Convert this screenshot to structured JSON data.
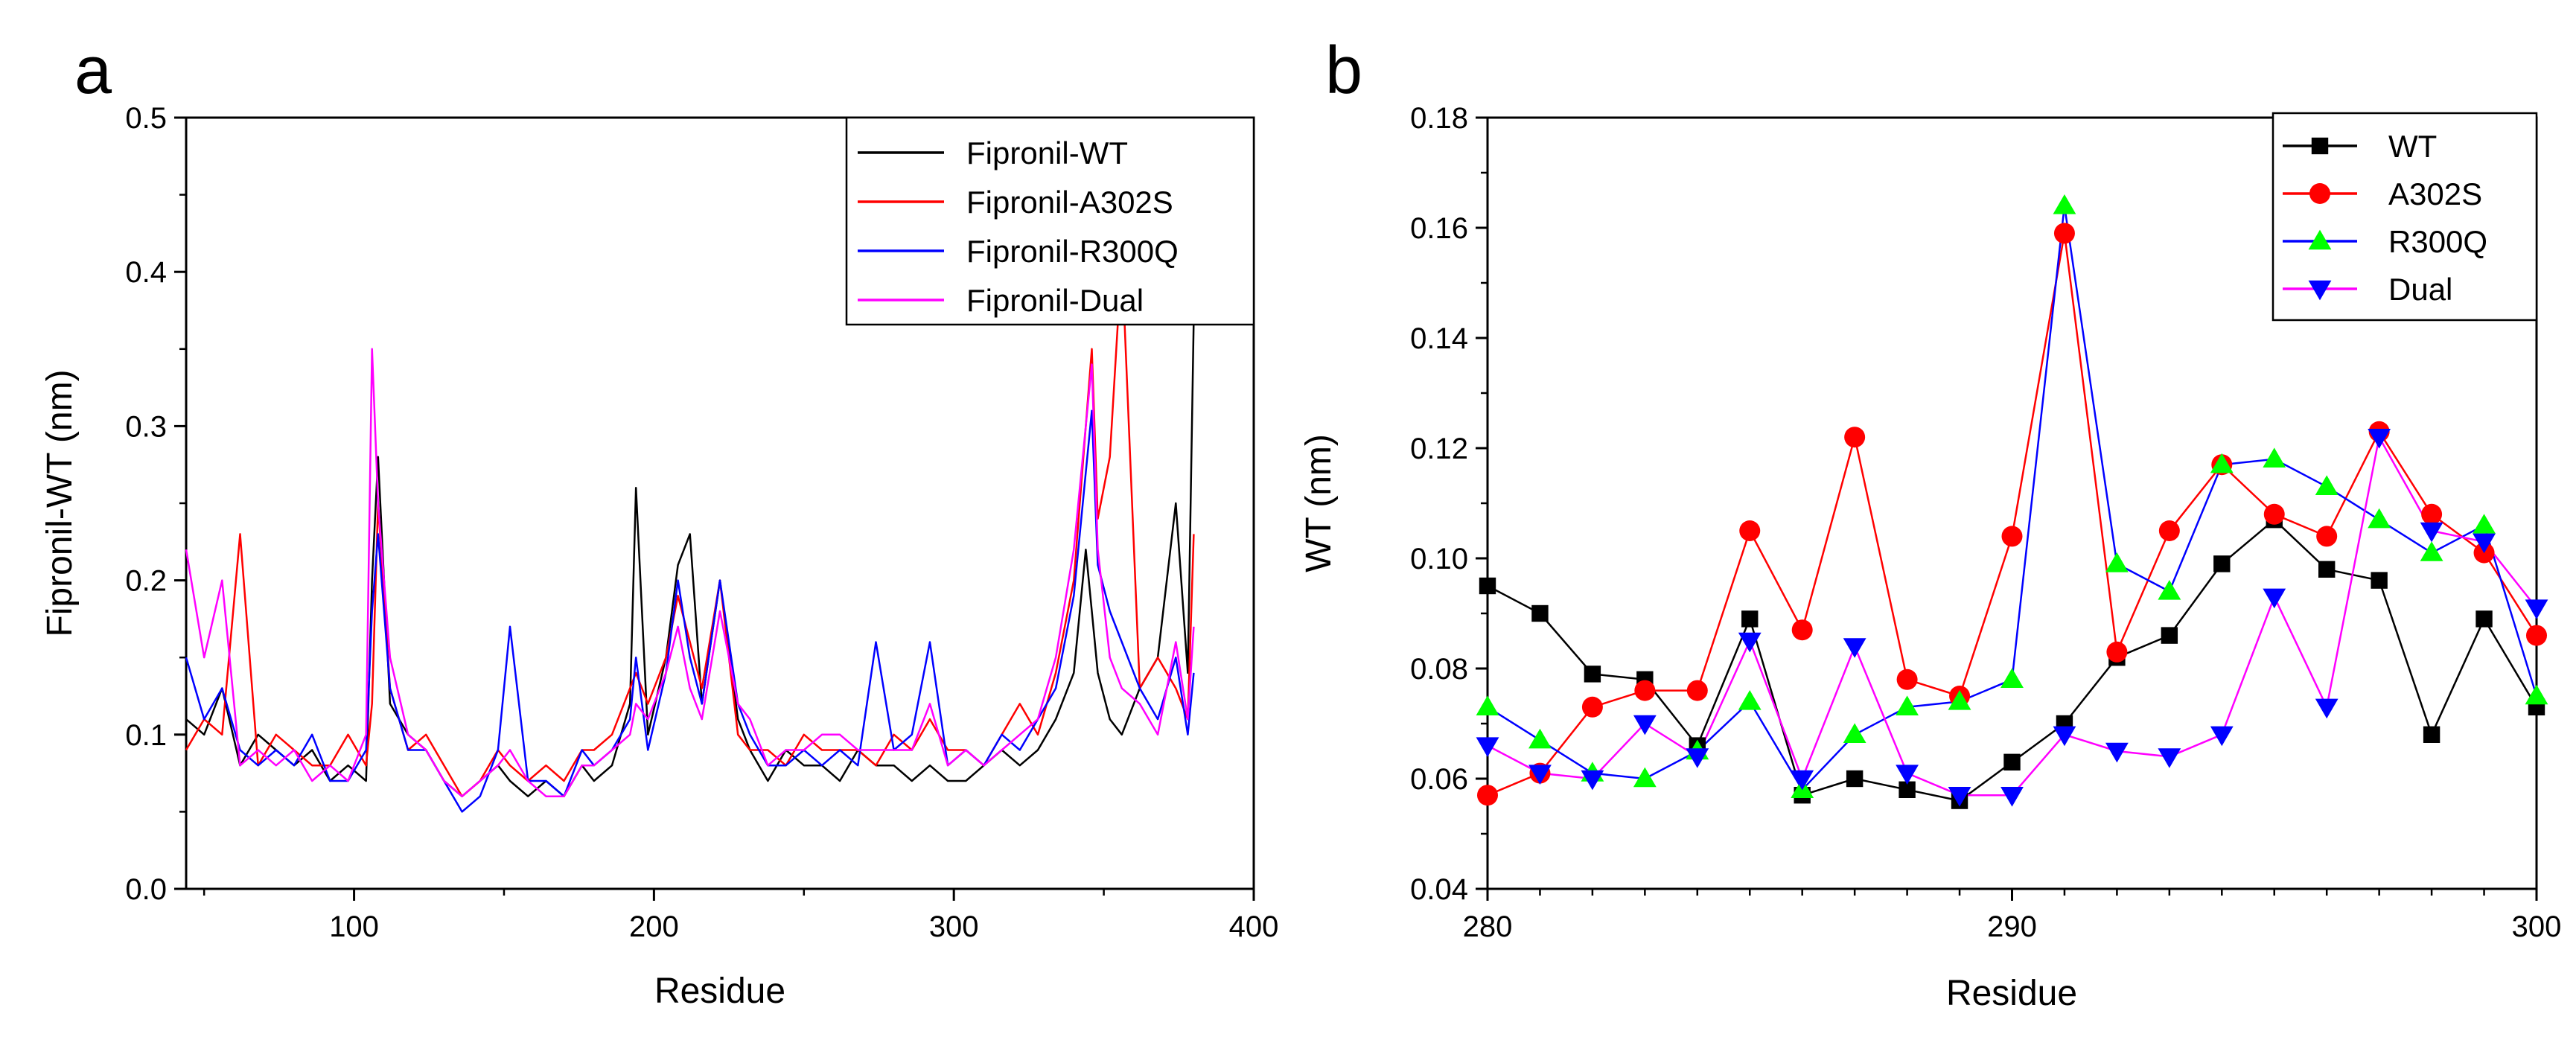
{
  "chart_data": [
    {
      "type": "line",
      "panel_label": "a",
      "title": "",
      "xlabel": "Residue",
      "ylabel": "Fipronil-WT (nm)",
      "xlim": [
        44,
        400
      ],
      "ylim": [
        0.0,
        0.5
      ],
      "xticks": [
        100,
        200,
        300,
        400
      ],
      "xtick_labels": [
        "100",
        "200",
        "300",
        "400"
      ],
      "yticks": [
        0.0,
        0.1,
        0.2,
        0.3,
        0.4,
        0.5
      ],
      "ytick_labels": [
        "0.0",
        "0.1",
        "0.2",
        "0.3",
        "0.4",
        "0.5"
      ],
      "legend_position": "top-right",
      "x": [
        44,
        50,
        56,
        62,
        68,
        74,
        80,
        86,
        92,
        98,
        104,
        106,
        108,
        112,
        118,
        124,
        130,
        136,
        142,
        148,
        152,
        158,
        164,
        170,
        176,
        180,
        186,
        192,
        194,
        198,
        204,
        208,
        212,
        216,
        222,
        228,
        232,
        238,
        244,
        250,
        256,
        262,
        268,
        274,
        280,
        286,
        292,
        298,
        304,
        310,
        316,
        322,
        328,
        334,
        340,
        344,
        346,
        348,
        352,
        356,
        362,
        368,
        374,
        378,
        380
      ],
      "series": [
        {
          "name": "Fipronil-WT",
          "color": "#000000",
          "values": [
            0.11,
            0.1,
            0.13,
            0.08,
            0.1,
            0.09,
            0.08,
            0.09,
            0.07,
            0.08,
            0.07,
            0.2,
            0.28,
            0.12,
            0.1,
            0.09,
            0.07,
            0.06,
            0.07,
            0.08,
            0.07,
            0.06,
            0.07,
            0.06,
            0.08,
            0.07,
            0.08,
            0.12,
            0.26,
            0.1,
            0.15,
            0.21,
            0.23,
            0.12,
            0.2,
            0.11,
            0.09,
            0.07,
            0.09,
            0.08,
            0.08,
            0.07,
            0.09,
            0.08,
            0.08,
            0.07,
            0.08,
            0.07,
            0.07,
            0.08,
            0.09,
            0.08,
            0.09,
            0.11,
            0.14,
            0.22,
            0.18,
            0.14,
            0.11,
            0.1,
            0.13,
            0.15,
            0.25,
            0.14,
            0.37
          ]
        },
        {
          "name": "Fipronil-A302S",
          "color": "#ff0000",
          "values": [
            0.09,
            0.11,
            0.1,
            0.23,
            0.08,
            0.1,
            0.09,
            0.08,
            0.08,
            0.1,
            0.08,
            0.12,
            0.25,
            0.13,
            0.09,
            0.1,
            0.08,
            0.06,
            0.07,
            0.09,
            0.08,
            0.07,
            0.08,
            0.07,
            0.09,
            0.09,
            0.1,
            0.13,
            0.14,
            0.12,
            0.15,
            0.19,
            0.16,
            0.13,
            0.2,
            0.1,
            0.09,
            0.09,
            0.08,
            0.1,
            0.09,
            0.09,
            0.09,
            0.08,
            0.1,
            0.09,
            0.11,
            0.09,
            0.09,
            0.08,
            0.1,
            0.12,
            0.1,
            0.14,
            0.2,
            0.3,
            0.35,
            0.24,
            0.28,
            0.41,
            0.13,
            0.15,
            0.13,
            0.11,
            0.23
          ]
        },
        {
          "name": "Fipronil-R300Q",
          "color": "#0000ff",
          "values": [
            0.15,
            0.11,
            0.13,
            0.09,
            0.08,
            0.09,
            0.08,
            0.1,
            0.07,
            0.07,
            0.09,
            0.18,
            0.23,
            0.13,
            0.09,
            0.09,
            0.07,
            0.05,
            0.06,
            0.09,
            0.17,
            0.07,
            0.07,
            0.06,
            0.09,
            0.08,
            0.09,
            0.11,
            0.15,
            0.09,
            0.14,
            0.2,
            0.15,
            0.12,
            0.2,
            0.12,
            0.1,
            0.08,
            0.08,
            0.09,
            0.08,
            0.09,
            0.08,
            0.16,
            0.09,
            0.1,
            0.16,
            0.08,
            0.09,
            0.08,
            0.1,
            0.09,
            0.11,
            0.13,
            0.19,
            0.27,
            0.31,
            0.21,
            0.18,
            0.16,
            0.13,
            0.11,
            0.15,
            0.1,
            0.14
          ]
        },
        {
          "name": "Fipronil-Dual",
          "color": "#ff00ff",
          "values": [
            0.22,
            0.15,
            0.2,
            0.08,
            0.09,
            0.08,
            0.09,
            0.07,
            0.08,
            0.07,
            0.1,
            0.35,
            0.25,
            0.15,
            0.1,
            0.09,
            0.07,
            0.06,
            0.07,
            0.08,
            0.09,
            0.07,
            0.06,
            0.06,
            0.08,
            0.08,
            0.09,
            0.1,
            0.12,
            0.11,
            0.14,
            0.17,
            0.13,
            0.11,
            0.18,
            0.12,
            0.11,
            0.08,
            0.09,
            0.09,
            0.1,
            0.1,
            0.09,
            0.09,
            0.09,
            0.09,
            0.12,
            0.08,
            0.09,
            0.08,
            0.09,
            0.1,
            0.11,
            0.15,
            0.22,
            0.3,
            0.34,
            0.22,
            0.15,
            0.13,
            0.12,
            0.1,
            0.16,
            0.11,
            0.17
          ]
        }
      ]
    },
    {
      "type": "line",
      "panel_label": "b",
      "title": "",
      "xlabel": "Residue",
      "ylabel": "WT (nm)",
      "xlim": [
        280,
        300
      ],
      "ylim": [
        0.04,
        0.18
      ],
      "xticks": [
        280,
        290,
        300
      ],
      "xtick_labels": [
        "280",
        "290",
        "300"
      ],
      "yticks": [
        0.04,
        0.06,
        0.08,
        0.1,
        0.12,
        0.14,
        0.16,
        0.18
      ],
      "ytick_labels": [
        "0.04",
        "0.06",
        "0.08",
        "0.10",
        "0.12",
        "0.14",
        "0.16",
        "0.18"
      ],
      "legend_position": "top-right",
      "x": [
        280,
        281,
        282,
        283,
        284,
        285,
        286,
        287,
        288,
        289,
        290,
        291,
        292,
        293,
        294,
        295,
        296,
        297,
        298,
        299,
        300
      ],
      "series": [
        {
          "name": "WT",
          "color": "#000000",
          "marker": "square",
          "values": [
            0.095,
            0.09,
            0.079,
            0.078,
            0.066,
            0.089,
            0.057,
            0.06,
            0.058,
            0.056,
            0.063,
            0.07,
            0.082,
            0.086,
            0.099,
            0.107,
            0.098,
            0.096,
            0.068,
            0.089,
            0.073
          ]
        },
        {
          "name": "A302S",
          "color": "#ff0000",
          "marker": "circle",
          "values": [
            0.057,
            0.061,
            0.073,
            0.076,
            0.076,
            0.105,
            0.087,
            0.122,
            0.078,
            0.075,
            0.104,
            0.159,
            0.083,
            0.105,
            0.117,
            0.108,
            0.104,
            0.123,
            0.108,
            0.101,
            0.086
          ]
        },
        {
          "name": "R300Q",
          "color": "#00ff00",
          "line_color": "#0000ff",
          "marker": "triangle-up",
          "values": [
            0.073,
            0.067,
            0.061,
            0.06,
            0.065,
            0.074,
            0.058,
            0.068,
            0.073,
            0.074,
            0.078,
            0.164,
            0.099,
            0.094,
            0.117,
            0.118,
            0.113,
            0.107,
            0.101,
            0.106,
            0.075
          ]
        },
        {
          "name": "Dual",
          "color": "#0000ff",
          "line_color": "#ff00ff",
          "marker": "triangle-down",
          "values": [
            0.066,
            0.061,
            0.06,
            0.07,
            0.064,
            0.085,
            0.06,
            0.084,
            0.061,
            0.057,
            0.057,
            0.068,
            0.065,
            0.064,
            0.068,
            0.093,
            0.073,
            0.122,
            0.105,
            0.103,
            0.091
          ]
        }
      ]
    }
  ]
}
